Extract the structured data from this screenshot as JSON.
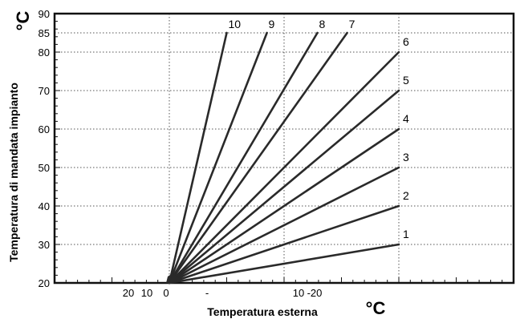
{
  "chart_data": {
    "type": "line",
    "title": "",
    "xlabel": "Temperatura esterna",
    "ylabel": "Temperatura di mandata impianto",
    "x_unit": "°C",
    "y_unit": "°C",
    "xlim": [
      -20,
      20
    ],
    "ylim": [
      20,
      90
    ],
    "x_tick_labels": [
      "20",
      "10",
      "0",
      "-",
      "10",
      "-20"
    ],
    "y_ticks": [
      20,
      30,
      40,
      50,
      60,
      70,
      80,
      85,
      90
    ],
    "grid": true,
    "legend": "none",
    "series": [
      {
        "name": "1",
        "x": [
          10,
          -10
        ],
        "y": [
          20,
          30
        ]
      },
      {
        "name": "2",
        "x": [
          10,
          -10
        ],
        "y": [
          20,
          40
        ]
      },
      {
        "name": "3",
        "x": [
          10,
          -10
        ],
        "y": [
          20,
          50
        ]
      },
      {
        "name": "4",
        "x": [
          10,
          -10
        ],
        "y": [
          20,
          60
        ]
      },
      {
        "name": "5",
        "x": [
          10,
          -10
        ],
        "y": [
          20,
          70
        ]
      },
      {
        "name": "6",
        "x": [
          10,
          -10
        ],
        "y": [
          20,
          80
        ]
      },
      {
        "name": "7",
        "x": [
          10,
          -5.5
        ],
        "y": [
          20,
          85
        ]
      },
      {
        "name": "8",
        "x": [
          10,
          -2.9
        ],
        "y": [
          20,
          85
        ]
      },
      {
        "name": "9",
        "x": [
          10,
          1.5
        ],
        "y": [
          20,
          85
        ]
      },
      {
        "name": "10",
        "x": [
          10,
          5.0
        ],
        "y": [
          20,
          85
        ]
      }
    ]
  }
}
